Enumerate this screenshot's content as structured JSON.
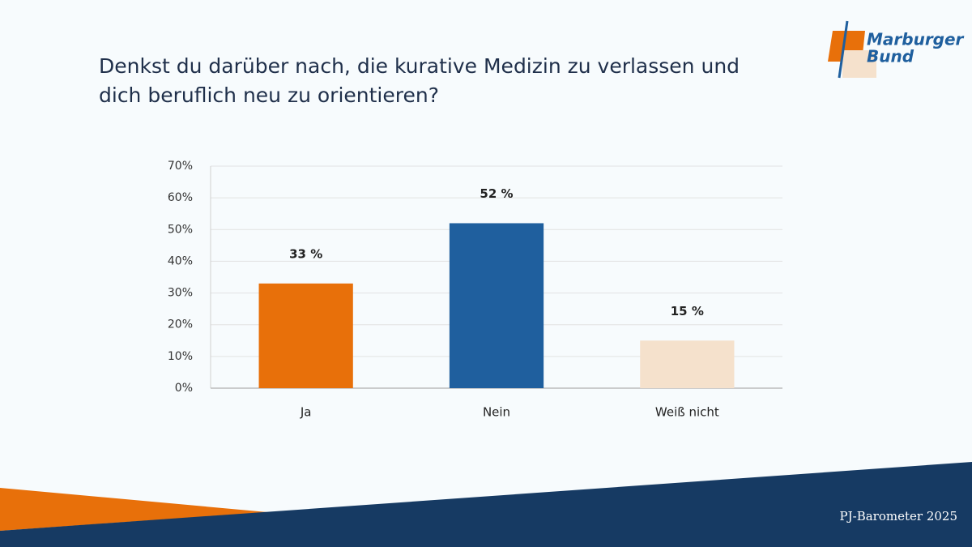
{
  "chart_data": {
    "type": "bar",
    "title": "Denkst du darüber nach, die kurative Medizin zu verlassen und dich beruflich neu zu orientieren?",
    "categories": [
      "Ja",
      "Nein",
      "Weiß nicht"
    ],
    "values": [
      33,
      52,
      15
    ],
    "value_labels": [
      "33 %",
      "52 %",
      "15 %"
    ],
    "colors": [
      "#e8700a",
      "#1f5f9e",
      "#f5e1cc"
    ],
    "ylim": [
      0,
      70
    ],
    "yticks": [
      {
        "value": 0,
        "label": "0%"
      },
      {
        "value": 10,
        "label": "10%"
      },
      {
        "value": 20,
        "label": "20%"
      },
      {
        "value": 30,
        "label": "30%"
      },
      {
        "value": 40,
        "label": "40%"
      },
      {
        "value": 50,
        "label": "50%"
      },
      {
        "value": 60,
        "label": "60%"
      },
      {
        "value": 70,
        "label": "70%"
      }
    ],
    "grid": true
  },
  "logo": {
    "line1": "Marburger",
    "line2": "Bund"
  },
  "footer": "PJ-Barometer 2025"
}
